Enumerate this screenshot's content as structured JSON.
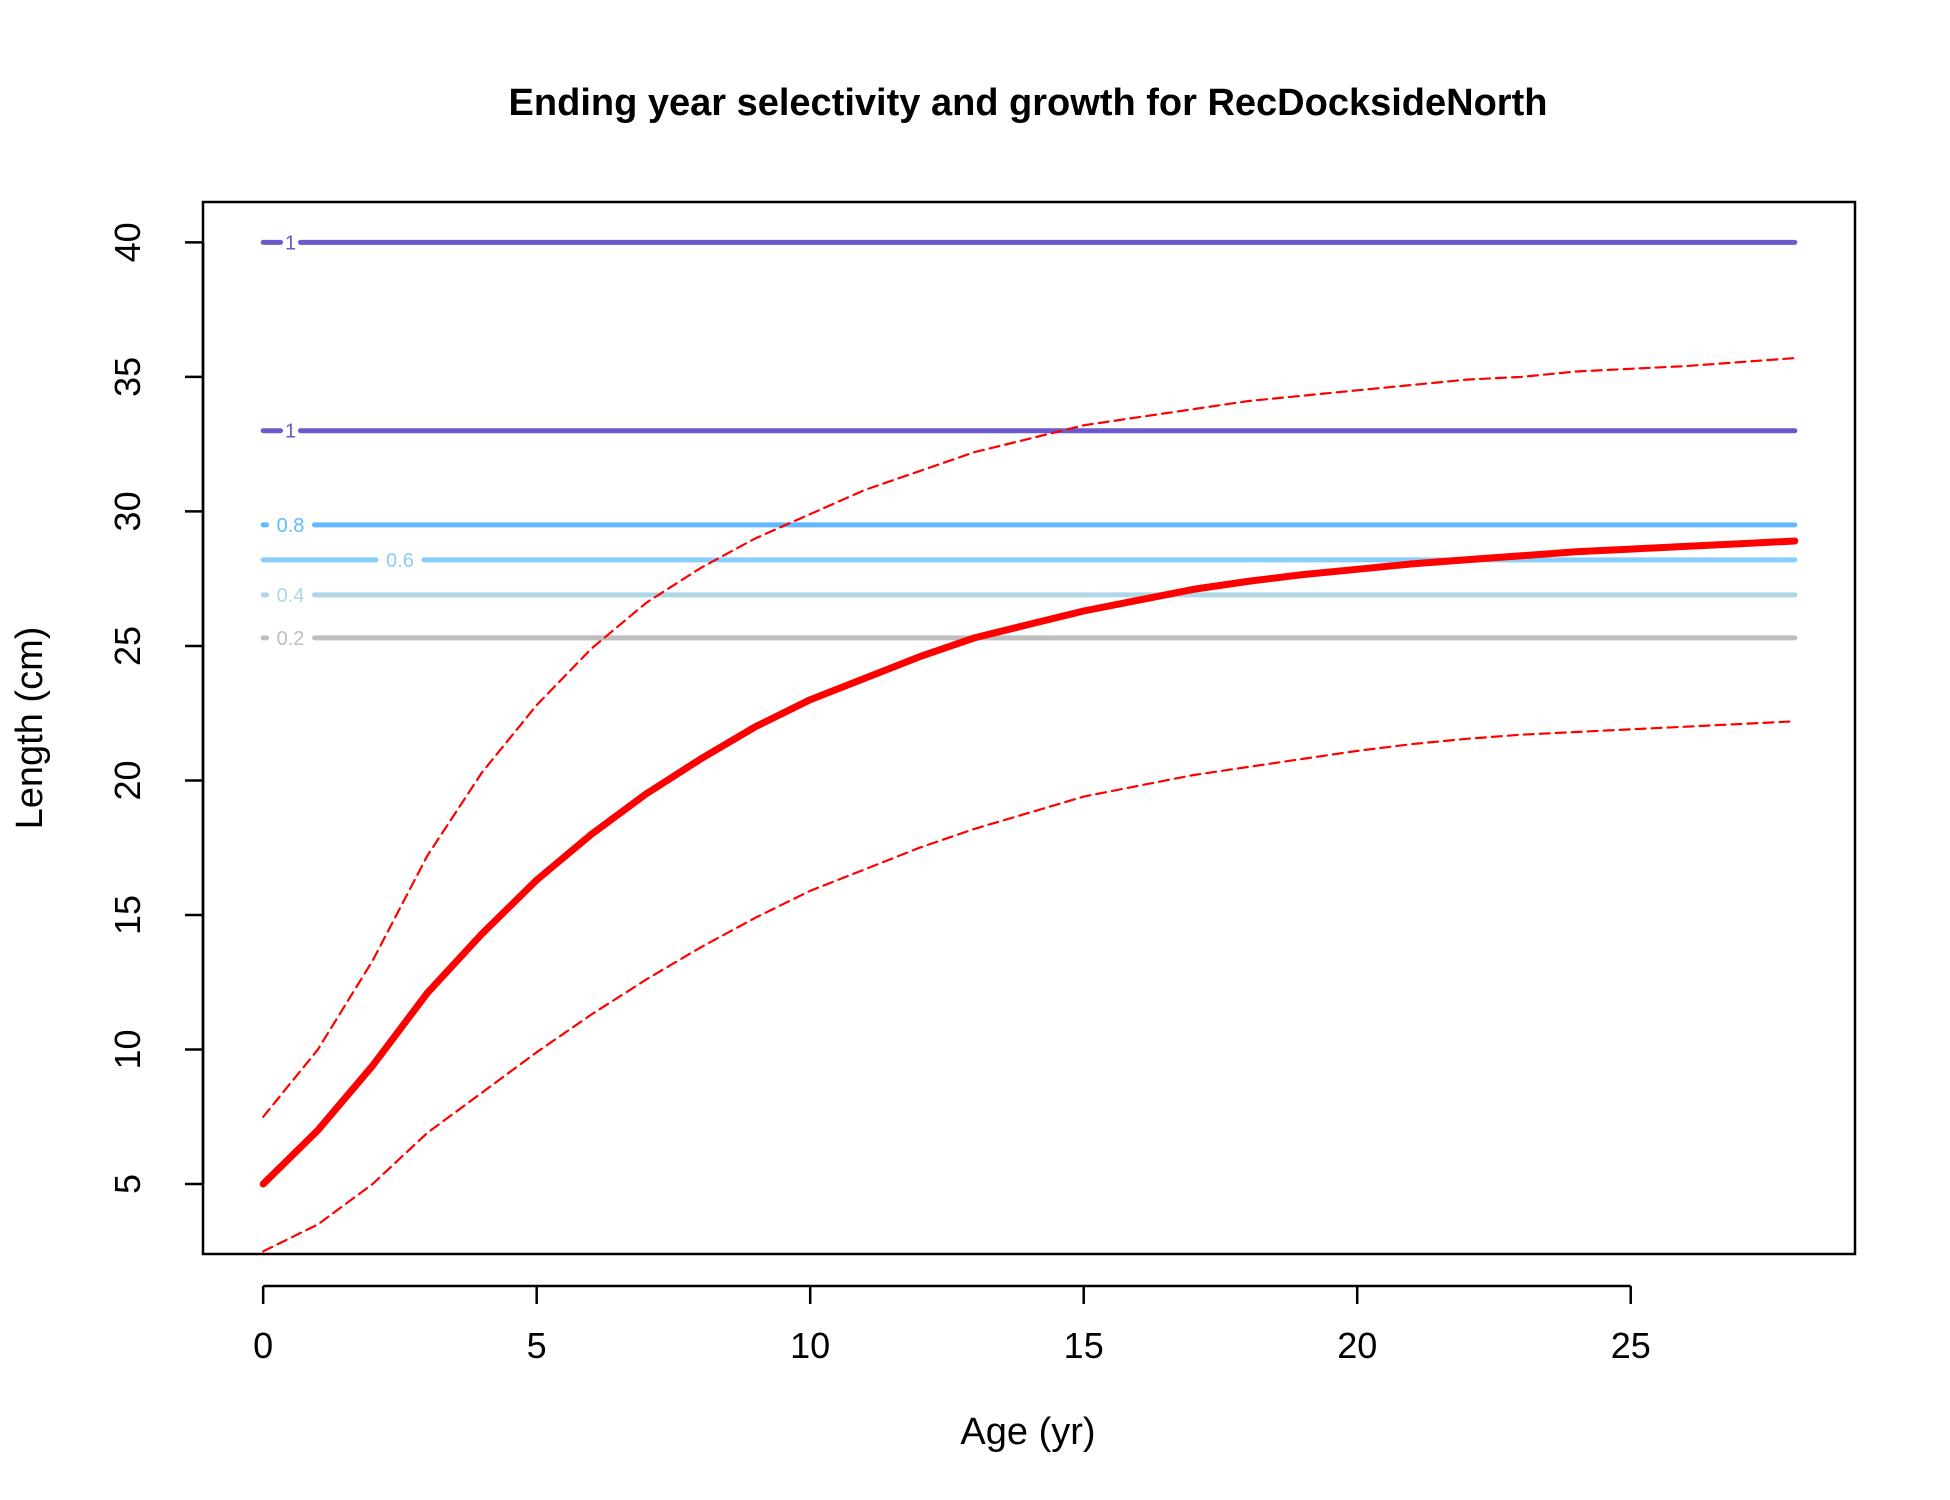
{
  "chart_data": {
    "type": "line",
    "title": "Ending year selectivity and growth for RecDocksideNorth",
    "xlabel": "Age (yr)",
    "ylabel": "Length (cm)",
    "xlim": [
      -1.1,
      29.1
    ],
    "ylim": [
      2.4,
      41.5
    ],
    "xticks": [
      0,
      5,
      10,
      15,
      20,
      25
    ],
    "yticks": [
      5,
      10,
      15,
      20,
      25,
      30,
      35,
      40
    ],
    "grid": false,
    "legend": "none",
    "colors": {
      "growth": "#ff0000",
      "contour_1": "#6a5acd",
      "contour_0_8": "#63b8ff",
      "contour_0_6": "#87cefa",
      "contour_0_4": "#add8e6",
      "contour_0_2": "#bebebe"
    },
    "contours": [
      {
        "label": "1",
        "y": 40.0,
        "x_from": 0,
        "x_to": 28,
        "color": "#6a5acd",
        "label_x": 0.5
      },
      {
        "label": "1",
        "y": 33.0,
        "x_from": 0,
        "x_to": 28,
        "color": "#6a5acd",
        "label_x": 0.5
      },
      {
        "label": "0.8",
        "y": 29.5,
        "x_from": 0,
        "x_to": 28,
        "color": "#63b8ff",
        "label_x": 0.5
      },
      {
        "label": "0.6",
        "y": 28.2,
        "x_from": 0,
        "x_to": 28,
        "color": "#87cefa",
        "label_x": 2.5
      },
      {
        "label": "0.4",
        "y": 26.9,
        "x_from": 0,
        "x_to": 28,
        "color": "#add8e6",
        "label_x": 0.5
      },
      {
        "label": "0.2",
        "y": 25.3,
        "x_from": 0,
        "x_to": 28,
        "color": "#bebebe",
        "label_x": 0.5
      }
    ],
    "series": [
      {
        "name": "",
        "style": "solid",
        "x": [
          0,
          1,
          2,
          3,
          4,
          5,
          6,
          7,
          8,
          9,
          10,
          11,
          12,
          13,
          14,
          15,
          16,
          17,
          18,
          19,
          20,
          21,
          22,
          23,
          24,
          25,
          26,
          27,
          28
        ],
        "y": [
          5.0,
          7.0,
          9.4,
          12.1,
          14.3,
          16.3,
          18.0,
          19.5,
          20.8,
          22.0,
          23.0,
          23.8,
          24.6,
          25.3,
          25.8,
          26.3,
          26.7,
          27.1,
          27.4,
          27.65,
          27.85,
          28.05,
          28.2,
          28.35,
          28.5,
          28.6,
          28.7,
          28.8,
          28.9
        ]
      },
      {
        "name": "",
        "style": "dashed",
        "x": [
          0,
          1,
          2,
          3,
          4,
          5,
          6,
          7,
          8,
          9,
          10,
          11,
          12,
          13,
          14,
          15,
          16,
          17,
          18,
          19,
          20,
          21,
          22,
          23,
          24,
          25,
          26,
          27,
          28
        ],
        "y": [
          7.5,
          10.0,
          13.3,
          17.2,
          20.3,
          22.8,
          24.9,
          26.6,
          27.9,
          29.0,
          29.9,
          30.8,
          31.5,
          32.2,
          32.7,
          33.2,
          33.5,
          33.8,
          34.1,
          34.3,
          34.5,
          34.7,
          34.9,
          35.0,
          35.2,
          35.3,
          35.4,
          35.55,
          35.7
        ]
      },
      {
        "name": "",
        "style": "dashed",
        "x": [
          0,
          1,
          2,
          3,
          4,
          5,
          6,
          7,
          8,
          9,
          10,
          11,
          12,
          13,
          14,
          15,
          16,
          17,
          18,
          19,
          20,
          21,
          22,
          23,
          24,
          25,
          26,
          27,
          28
        ],
        "y": [
          2.5,
          3.5,
          5.0,
          6.9,
          8.4,
          9.9,
          11.3,
          12.6,
          13.8,
          14.9,
          15.9,
          16.7,
          17.5,
          18.2,
          18.8,
          19.4,
          19.8,
          20.2,
          20.5,
          20.8,
          21.1,
          21.35,
          21.55,
          21.7,
          21.8,
          21.9,
          22.0,
          22.1,
          22.2
        ]
      }
    ]
  }
}
